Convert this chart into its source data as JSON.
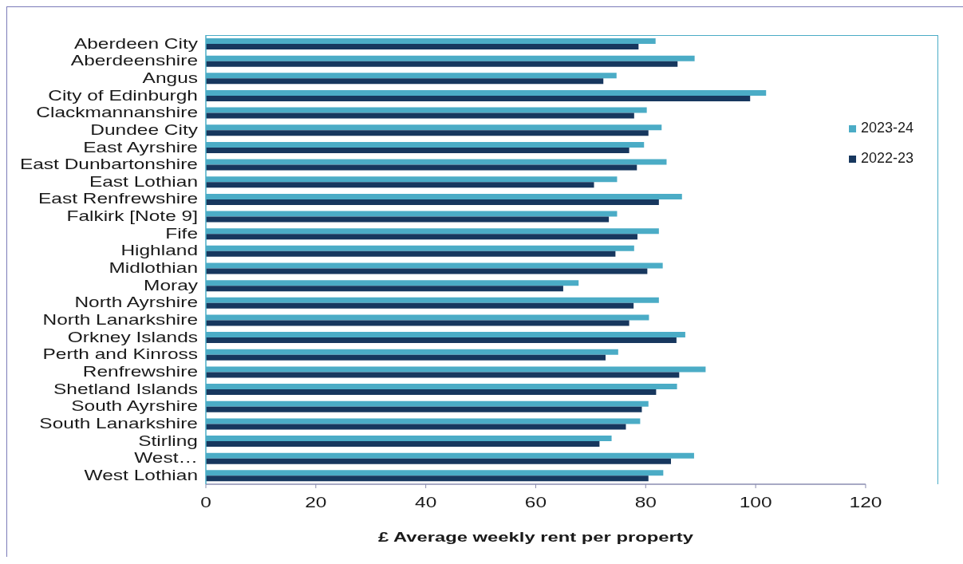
{
  "chart_data": {
    "type": "bar",
    "orientation": "horizontal",
    "xlabel": "£ Average weekly rent per property",
    "categories": [
      "Aberdeen City",
      "Aberdeenshire",
      "Angus",
      "City of Edinburgh",
      "Clackmannanshire",
      "Dundee City",
      "East Ayrshire",
      "East Dunbartonshire",
      "East Lothian",
      "East Renfrewshire",
      "Falkirk [Note 9]",
      "Fife",
      "Highland",
      "Midlothian",
      "Moray",
      "North Ayrshire",
      "North Lanarkshire",
      "Orkney Islands",
      "Perth and Kinross",
      "Renfrewshire",
      "Shetland Islands",
      "South Ayrshire",
      "South Lanarkshire",
      "Stirling",
      "West…",
      "West Lothian"
    ],
    "series": [
      {
        "name": "2023-24",
        "color": "#4bacc6",
        "values": [
          81.8,
          88.9,
          74.7,
          101.9,
          80.2,
          82.9,
          79.7,
          83.8,
          74.8,
          86.6,
          74.8,
          82.4,
          77.9,
          83.1,
          67.8,
          82.4,
          80.6,
          87.2,
          75.0,
          90.9,
          85.7,
          80.5,
          79.0,
          73.8,
          88.8,
          83.2
        ]
      },
      {
        "name": "2022-23",
        "color": "#17375e",
        "values": [
          78.7,
          85.8,
          72.3,
          99.0,
          77.9,
          80.5,
          77.0,
          78.4,
          70.6,
          82.4,
          73.3,
          78.5,
          74.5,
          80.3,
          65.0,
          77.8,
          77.0,
          85.6,
          72.7,
          86.1,
          81.9,
          79.3,
          76.4,
          71.6,
          84.6,
          80.5
        ]
      }
    ],
    "xlim": [
      0,
      120
    ],
    "xticks": [
      0,
      20,
      40,
      60,
      80,
      100,
      120
    ],
    "legend": "right"
  }
}
